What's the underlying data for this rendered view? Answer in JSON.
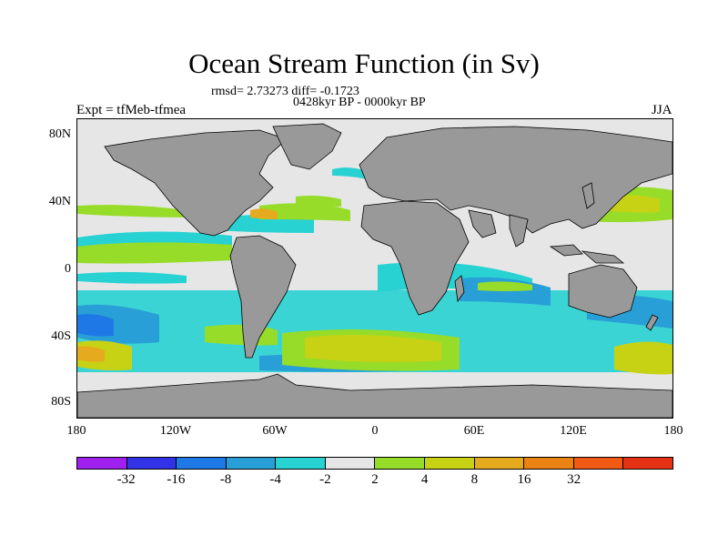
{
  "title": "Ocean Stream Function (in Sv)",
  "stats": "rmsd= 2.73273 diff= -0.1723",
  "period": "0428kyr BP - 0000kyr BP",
  "experiment": "Expt = tfMeb-tfmea",
  "season": "JJA",
  "colors": {
    "land": "#999999",
    "ocean_neutral": "#e6e6e6",
    "outline": "#000000"
  },
  "map": {
    "projection": "cylindrical equidistant",
    "lon_range": [
      -180,
      180
    ],
    "lat_range": [
      -90,
      90
    ],
    "y_ticks": [
      "80N",
      "40N",
      "0",
      "40S",
      "80S"
    ],
    "x_ticks": [
      "180",
      "120W",
      "60W",
      "0",
      "60E",
      "120E",
      "180"
    ]
  },
  "colorbar": {
    "colors": [
      "#a020f0",
      "#3232e6",
      "#1e78e6",
      "#28a0d7",
      "#28d2d2",
      "#e6e6e6",
      "#96dc28",
      "#c8d214",
      "#e6aa1e",
      "#eb8214",
      "#f05a14",
      "#e63214"
    ],
    "labels": [
      "-32",
      "-16",
      "-8",
      "-4",
      "-2",
      "2",
      "4",
      "8",
      "16",
      "32"
    ]
  }
}
